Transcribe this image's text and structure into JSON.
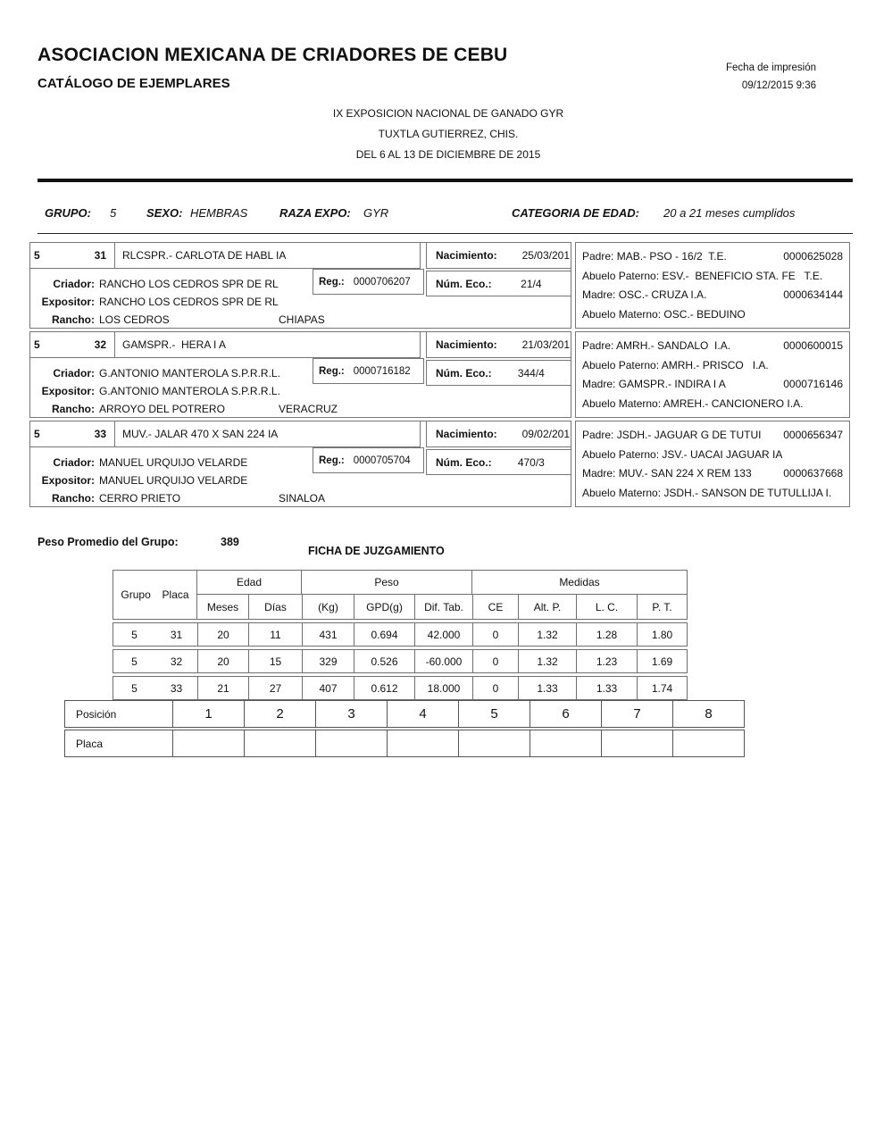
{
  "header": {
    "org_title": "ASOCIACION MEXICANA DE CRIADORES DE CEBU",
    "doc_title": "CATÁLOGO DE EJEMPLARES",
    "print_label": "Fecha de impresión",
    "print_datetime": "09/12/2015 9:36",
    "event_line1": "IX EXPOSICION NACIONAL DE GANADO GYR",
    "event_line2": "TUXTLA GUTIERREZ, CHIS.",
    "event_line3": "DEL 6 AL 13 DE DICIEMBRE DE 2015"
  },
  "group_bar": {
    "grupo_label": "GRUPO:",
    "grupo": "5",
    "sexo_label": "SEXO:",
    "sexo": "HEMBRAS",
    "raza_label": "RAZA EXPO:",
    "raza": "GYR",
    "categoria_label": "CATEGORIA DE EDAD:",
    "categoria": "20 a 21 meses cumplidos"
  },
  "labels": {
    "nacimiento": "Nacimiento:",
    "reg": "Reg.:",
    "num_eco": "Núm. Eco.:",
    "criador": "Criador:",
    "expositor": "Expositor:",
    "rancho": "Rancho:",
    "padre": "Padre:",
    "abuelo_paterno": "Abuelo Paterno:",
    "madre": "Madre:",
    "abuelo_materno": "Abuelo Materno:"
  },
  "records": [
    {
      "grupo": "5",
      "placa": "31",
      "nombre": "RLCSPR.- CARLOTA DE HABL IA",
      "nacimiento": "25/03/201",
      "reg": "0000706207",
      "num_eco": "21/4",
      "criador": "RANCHO LOS CEDROS SPR DE RL",
      "expositor": "RANCHO LOS CEDROS SPR DE RL",
      "rancho": "LOS CEDROS",
      "estado": "CHIAPAS",
      "padre": "MAB.- PSO - 16/2  T.E.",
      "padre_reg": "0000625028",
      "abuelo_paterno": "ESV.-  BENEFICIO STA. FE   T.E.",
      "madre": "OSC.- CRUZA I.A.",
      "madre_reg": "0000634144",
      "abuelo_materno": "OSC.- BEDUINO"
    },
    {
      "grupo": "5",
      "placa": "32",
      "nombre": "GAMSPR.-  HERA I A",
      "nacimiento": "21/03/201",
      "reg": "0000716182",
      "num_eco": "344/4",
      "criador": "G.ANTONIO MANTEROLA S.P.R.R.L.",
      "expositor": "G.ANTONIO MANTEROLA S.P.R.R.L.",
      "rancho": "ARROYO DEL POTRERO",
      "estado": "VERACRUZ",
      "padre": "AMRH.- SANDALO  I.A.",
      "padre_reg": "0000600015",
      "abuelo_paterno": "AMRH.- PRISCO   I.A.",
      "madre": "GAMSPR.- INDIRA I A",
      "madre_reg": "0000716146",
      "abuelo_materno": "AMREH.- CANCIONERO I.A."
    },
    {
      "grupo": "5",
      "placa": "33",
      "nombre": "MUV.- JALAR 470 X SAN 224 IA",
      "nacimiento": "09/02/201",
      "reg": "0000705704",
      "num_eco": "470/3",
      "criador": "MANUEL URQUIJO VELARDE",
      "expositor": "MANUEL URQUIJO VELARDE",
      "rancho": "CERRO PRIETO",
      "estado": "SINALOA",
      "padre": "JSDH.- JAGUAR G DE TUTUI",
      "padre_reg": "0000656347",
      "abuelo_paterno": "JSV.- UACAI JAGUAR IA",
      "madre": "MUV.- SAN 224 X REM 133",
      "madre_reg": "0000637668",
      "abuelo_materno": "JSDH.- SANSON DE TUTULLIJA I."
    }
  ],
  "summary": {
    "peso_promedio_label": "Peso Promedio del Grupo:",
    "peso_promedio": "389",
    "ficha_title": "FICHA DE JUZGAMIENTO"
  },
  "judging_table": {
    "col_groups": {
      "grupo": "Grupo",
      "placa": "Placa",
      "edad": "Edad",
      "peso": "Peso",
      "medidas": "Medidas"
    },
    "sub_headers": [
      "Meses",
      "Días",
      "(Kg)",
      "GPD(g)",
      "Dif. Tab.",
      "CE",
      "Alt. P.",
      "L. C.",
      "P. T."
    ],
    "rows": [
      [
        "5",
        "31",
        "20",
        "11",
        "431",
        "0.694",
        "42.000",
        "0",
        "1.32",
        "1.28",
        "1.80"
      ],
      [
        "5",
        "32",
        "20",
        "15",
        "329",
        "0.526",
        "-60.000",
        "0",
        "1.32",
        "1.23",
        "1.69"
      ],
      [
        "5",
        "33",
        "21",
        "27",
        "407",
        "0.612",
        "18.000",
        "0",
        "1.33",
        "1.33",
        "1.74"
      ]
    ]
  },
  "position_table": {
    "posicion_label": "Posición",
    "placa_label": "Placa",
    "positions": [
      "1",
      "2",
      "3",
      "4",
      "5",
      "6",
      "7",
      "8"
    ]
  }
}
